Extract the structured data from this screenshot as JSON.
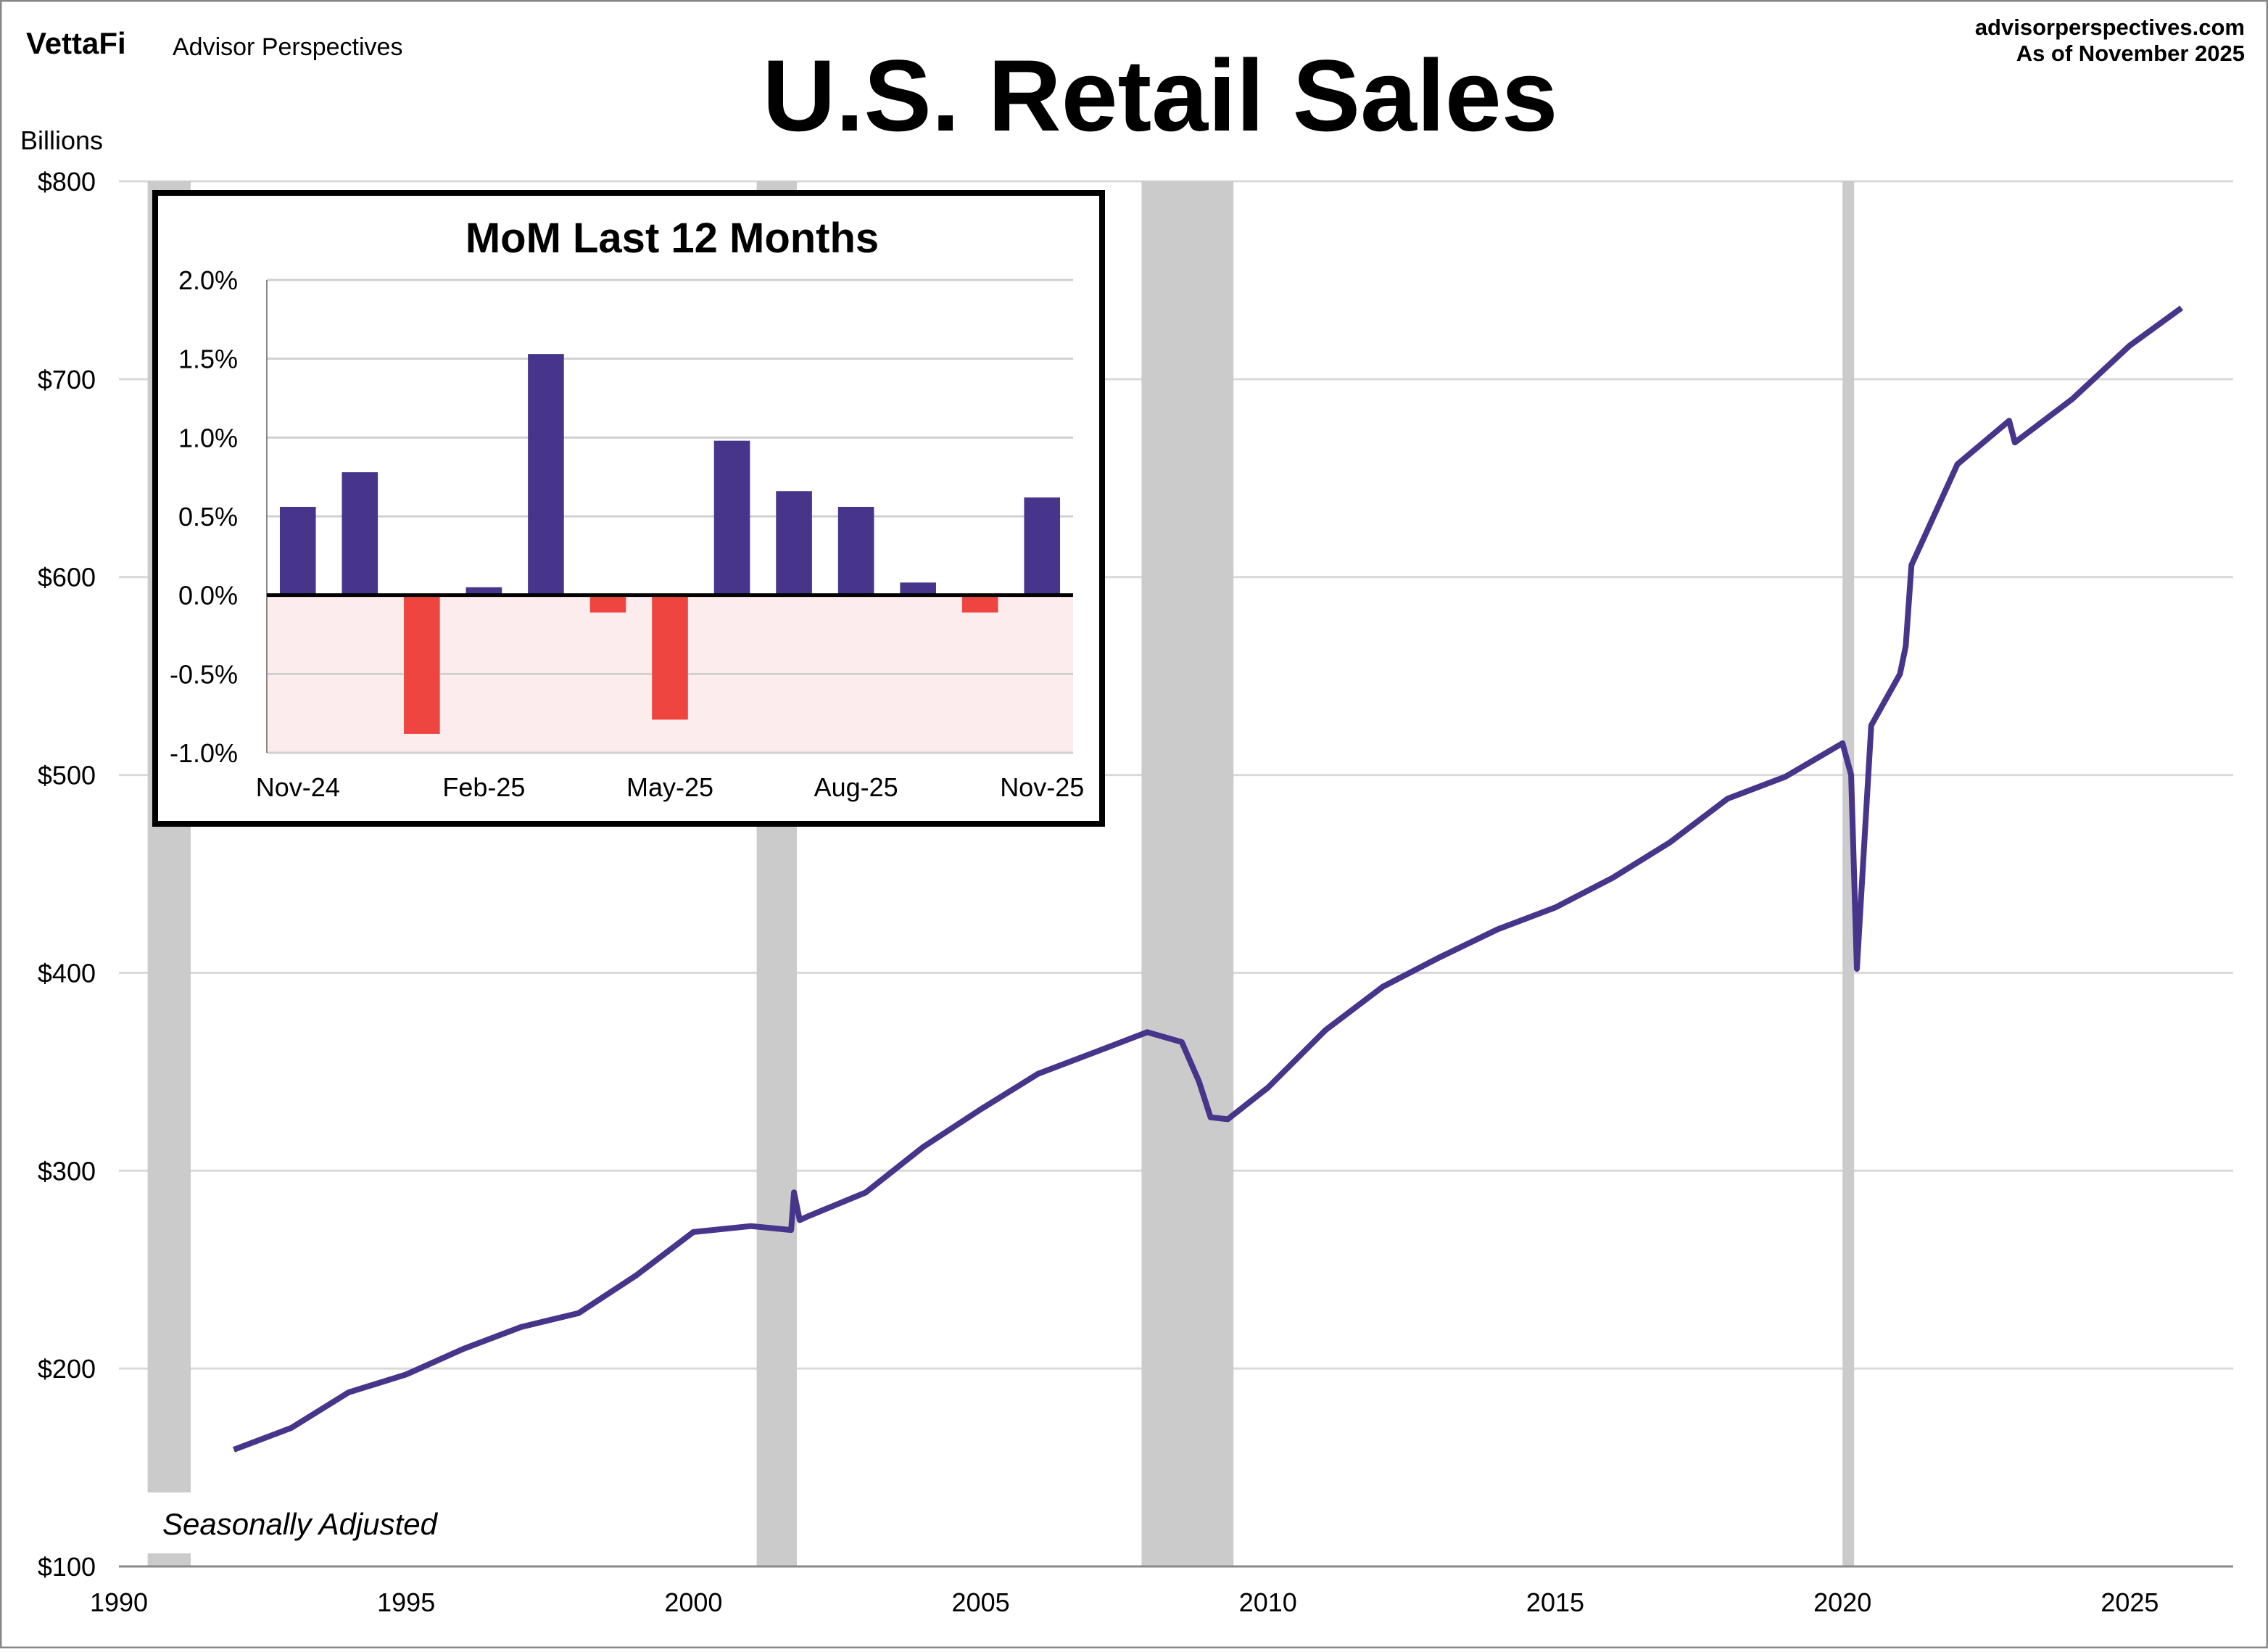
{
  "header": {
    "logo": "VettaFi",
    "brand": "Advisor Perspectives",
    "site": "advisorperspectives.com",
    "as_of": "As of November 2025"
  },
  "colors": {
    "line": "#46358a",
    "positive": "#46358a",
    "negative": "#ef4540",
    "recession": "#cbcbcb",
    "negative_zone": "#fdeced"
  },
  "chart_data": [
    {
      "type": "line",
      "title": "U.S. Retail Sales",
      "ylabel": "Billions",
      "annotation": "Seasonally Adjusted",
      "xlim": [
        1990,
        2026.8
      ],
      "ylim": [
        100,
        800
      ],
      "grid": true,
      "xticks": [
        "1990",
        "1995",
        "2000",
        "2005",
        "2010",
        "2015",
        "2020",
        "2025"
      ],
      "yticks": [
        "$100",
        "$200",
        "$300",
        "$400",
        "$500",
        "$600",
        "$700",
        "$800"
      ],
      "recessions": [
        [
          1990.5,
          1991.25
        ],
        [
          2001.1,
          2001.8
        ],
        [
          2007.8,
          2009.4
        ],
        [
          2020.0,
          2020.2
        ]
      ],
      "series": [
        {
          "x": [
            1992,
            1993,
            1994,
            1995,
            1996,
            1997,
            1998,
            1999,
            2000,
            2001,
            2001.7,
            2001.75,
            2001.85,
            2002,
            2003,
            2004,
            2005,
            2006,
            2007,
            2007.9,
            2008.5,
            2008.8,
            2009.0,
            2009.3,
            2010,
            2011,
            2012,
            2013,
            2014,
            2015,
            2016,
            2017,
            2018,
            2019,
            2020.0,
            2020.15,
            2020.25,
            2020.5,
            2021.0,
            2021.1,
            2021.2,
            2022,
            2022.9,
            2023,
            2024,
            2025,
            2025.9
          ],
          "y": [
            159,
            170,
            188,
            197,
            210,
            221,
            228,
            247,
            269,
            272,
            270,
            289,
            275,
            277,
            289,
            312,
            331,
            349,
            360,
            370,
            365,
            345,
            327,
            326,
            342,
            371,
            393,
            408,
            422,
            433,
            448,
            466,
            488,
            499,
            516,
            500,
            402,
            525,
            551,
            565,
            606,
            657,
            679,
            668,
            690,
            717,
            736
          ]
        }
      ]
    },
    {
      "type": "bar",
      "title": "MoM Last 12 Months",
      "categories": [
        "Nov-24",
        "Dec-24",
        "Jan-25",
        "Feb-25",
        "Mar-25",
        "Apr-25",
        "May-25",
        "Jun-25",
        "Jul-25",
        "Aug-25",
        "Sep-25",
        "Oct-25",
        "Nov-25"
      ],
      "xtick_labels": [
        "Nov-24",
        "Feb-25",
        "May-25",
        "Aug-25",
        "Nov-25"
      ],
      "values": [
        0.56,
        0.78,
        -0.88,
        0.05,
        1.53,
        -0.11,
        -0.79,
        0.98,
        0.66,
        0.56,
        0.08,
        -0.11,
        0.62
      ],
      "ylim": [
        -1.0,
        2.0
      ],
      "yticks": [
        "-1.0%",
        "-0.5%",
        "0.0%",
        "0.5%",
        "1.0%",
        "1.5%",
        "2.0%"
      ],
      "grid": true
    }
  ]
}
